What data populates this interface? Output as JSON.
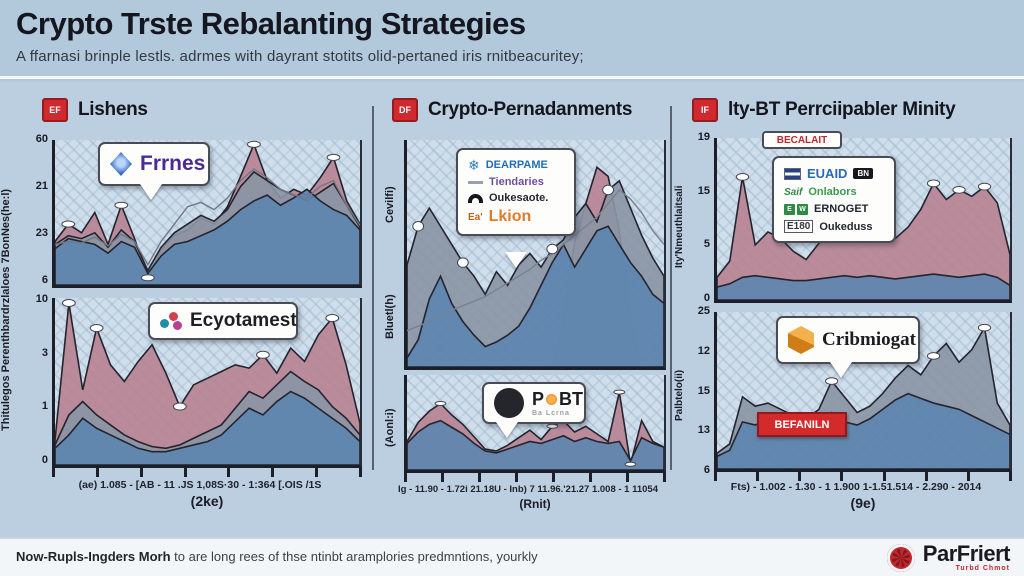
{
  "header": {
    "title": "Crypto Trste Rebalanting Strategies",
    "subtitle": "A ffarnasi brinple lestls. adrmes with dayrant stotits olid-pertaned iris rnitbeacuritey;"
  },
  "columns": [
    {
      "icon": "EF",
      "title": "Lishens",
      "ylabel_line1": "Thitulegos",
      "ylabel_line2": "Perenthbardrzlaloes 7BonNes(he:l)"
    },
    {
      "icon": "DF",
      "title": "Crypto-Pernadanments"
    },
    {
      "icon": "IF",
      "title": "lty-BT Perrciipabler Minity"
    }
  ],
  "legends": {
    "c0": {
      "label": "Frrnes"
    },
    "c1": {
      "label": "Ecyotamest"
    },
    "c2": {
      "rows": [
        {
          "text": "DEARPAME",
          "color": "#1f6fb5"
        },
        {
          "text": "Tiendaries",
          "color": "#6b4fa0"
        },
        {
          "text": "Oukesaote.",
          "color": "#22262e"
        },
        {
          "prefix": "Ea'",
          "text": "Lkion",
          "color": "#e07b2a"
        }
      ]
    },
    "c3": {
      "p": "P",
      "bt": "BT",
      "sub": "Ba Lcrna"
    },
    "c4": {
      "tab": "BECALAIT",
      "rows": [
        {
          "text": "EUAID",
          "badge": "BN",
          "color": "#2a6bb5"
        },
        {
          "prefix": "Saif",
          "text": "Onlabors",
          "color": "#3a9a4a"
        },
        {
          "sq1": "E",
          "sq2": "W",
          "text": "ERNOGET",
          "color": "#22262e"
        },
        {
          "prefix": "E180",
          "text": "Oukeduss",
          "color": "#22262e"
        }
      ]
    },
    "c5": {
      "label": "Cribmiogat",
      "badge": "BEFANILN"
    }
  },
  "footer": {
    "note_bold": "Now-Rupls-Ingders Morh",
    "note_rest": " to are long rees of thse ntinbt aramplories predmntions, yourkly",
    "brand": "ParFriert",
    "brand_sub": "Turbd Chmot"
  },
  "chart_data": [
    {
      "type": "area",
      "title": "Lishens (top)",
      "yticks": [
        "60",
        "21",
        "23",
        "6"
      ],
      "markers": [
        1,
        5,
        7,
        15,
        21
      ],
      "marker_series": 0,
      "series": [
        {
          "name": "pink",
          "color": "#b98392",
          "values": [
            30,
            42,
            36,
            50,
            28,
            55,
            32,
            5,
            24,
            34,
            38,
            46,
            42,
            54,
            75,
            97,
            72,
            60,
            66,
            62,
            74,
            88,
            58,
            42
          ]
        },
        {
          "name": "gray",
          "color": "#8b95a5",
          "values": [
            28,
            34,
            32,
            36,
            26,
            38,
            30,
            10,
            26,
            36,
            42,
            48,
            44,
            52,
            68,
            78,
            72,
            66,
            62,
            58,
            64,
            70,
            55,
            40
          ]
        },
        {
          "name": "blue",
          "color": "#5e85b0",
          "values": [
            25,
            32,
            30,
            28,
            22,
            30,
            26,
            8,
            20,
            28,
            30,
            34,
            38,
            44,
            52,
            58,
            62,
            55,
            60,
            66,
            58,
            52,
            48,
            38
          ]
        },
        {
          "name": "trend",
          "color": "#6f7885",
          "line": true,
          "values": [
            28,
            30,
            29,
            33,
            27,
            35,
            30,
            14,
            30,
            42,
            54,
            57,
            52,
            60,
            72,
            80,
            74,
            66,
            62,
            60,
            68,
            72,
            55,
            41
          ]
        }
      ]
    },
    {
      "type": "area",
      "title": "Lishens (bottom)",
      "yticks": [
        "10",
        "3",
        "1",
        "0"
      ],
      "xticklabels": "(ae)  1.085 - [AB - 11 .JS 1,08S·30 - 1:364  [.OIS /1S",
      "xlabel": "(2ke)",
      "markers": [
        1,
        3,
        9,
        15,
        20
      ],
      "marker_series": 0,
      "series": [
        {
          "name": "pink",
          "color": "#b98392",
          "values": [
            15,
            97,
            45,
            82,
            60,
            50,
            62,
            72,
            55,
            35,
            48,
            52,
            56,
            60,
            58,
            66,
            55,
            70,
            62,
            78,
            88,
            60,
            25
          ]
        },
        {
          "name": "gray",
          "color": "#8b95a5",
          "values": [
            12,
            30,
            38,
            30,
            24,
            18,
            14,
            11,
            10,
            12,
            16,
            20,
            24,
            34,
            44,
            40,
            48,
            56,
            50,
            45,
            35,
            28,
            18
          ]
        },
        {
          "name": "blue",
          "color": "#5e85b0",
          "values": [
            10,
            18,
            28,
            22,
            18,
            14,
            10,
            8,
            8,
            10,
            12,
            14,
            18,
            26,
            34,
            30,
            38,
            44,
            40,
            34,
            28,
            22,
            14
          ]
        }
      ]
    },
    {
      "type": "area",
      "title": "Crypto-Pernadanments (top)",
      "ylabel1": "Cevilfi)",
      "ylabel2": "Bluetl(h)",
      "markers": [
        1,
        5,
        13,
        18
      ],
      "marker_series": 1,
      "series": [
        {
          "name": "pink",
          "color": "#b98392",
          "values": [
            0,
            0,
            0,
            0,
            0,
            0,
            0,
            0,
            0,
            0,
            0,
            0,
            0,
            0,
            20,
            55,
            72,
            88,
            84,
            60,
            20,
            0,
            0,
            0
          ]
        },
        {
          "name": "gray",
          "color": "#8b95a5",
          "values": [
            45,
            62,
            70,
            62,
            54,
            46,
            40,
            32,
            42,
            36,
            45,
            50,
            44,
            52,
            56,
            66,
            72,
            64,
            78,
            82,
            70,
            58,
            48,
            40
          ]
        },
        {
          "name": "blue",
          "color": "#5e85b0",
          "values": [
            4,
            12,
            30,
            40,
            28,
            20,
            14,
            9,
            11,
            14,
            18,
            26,
            36,
            46,
            54,
            44,
            52,
            60,
            62,
            54,
            46,
            40,
            32,
            28
          ]
        },
        {
          "name": "trend",
          "color": "#7a8290",
          "line": true,
          "values": [
            16,
            18,
            20,
            22,
            25,
            27,
            29,
            31,
            34,
            37,
            40,
            43,
            47,
            50,
            54,
            58,
            62,
            66,
            72,
            78,
            74,
            68,
            60,
            54
          ]
        }
      ]
    },
    {
      "type": "area",
      "title": "Crypto-Pernadanments (bottom)",
      "ylabel": "(Aonl:i)",
      "xticklabels": "Ig - 11.90 - 1.72i 21.18U - Inb) 7 11.96.'21.27 1.008 - 1 11054",
      "xlabel": "(Rnit)",
      "markers": [
        3,
        13,
        19,
        20
      ],
      "marker_series": 0,
      "series": [
        {
          "name": "pink",
          "color": "#b98392",
          "values": [
            30,
            50,
            62,
            70,
            58,
            48,
            35,
            22,
            20,
            26,
            34,
            42,
            32,
            46,
            52,
            40,
            46,
            38,
            30,
            82,
            6,
            52,
            30,
            24
          ]
        },
        {
          "name": "blue",
          "color": "#5e85b0",
          "values": [
            28,
            40,
            48,
            52,
            45,
            38,
            28,
            20,
            18,
            22,
            26,
            30,
            28,
            32,
            36,
            30,
            34,
            30,
            28,
            30,
            10,
            34,
            28,
            24
          ]
        }
      ]
    },
    {
      "type": "area",
      "title": "lty-BT (top)",
      "yticks": [
        "19",
        "15",
        "5",
        "0"
      ],
      "ylabel": "Ity'Nmeuthlaitsali",
      "markers": [
        2,
        17,
        19,
        21
      ],
      "marker_series": 0,
      "series": [
        {
          "name": "pink",
          "color": "#b98392",
          "values": [
            14,
            24,
            76,
            34,
            42,
            38,
            30,
            25,
            35,
            42,
            48,
            45,
            50,
            42,
            38,
            45,
            56,
            72,
            62,
            68,
            64,
            70,
            60,
            28
          ]
        },
        {
          "name": "blue",
          "color": "#5e85b0",
          "values": [
            8,
            10,
            14,
            15,
            14,
            13,
            12,
            12,
            13,
            14,
            15,
            14,
            15,
            14,
            13,
            14,
            15,
            16,
            15,
            14,
            15,
            16,
            14,
            9
          ]
        }
      ]
    },
    {
      "type": "area",
      "title": "lty-BT (bottom)",
      "yticks": [
        "25",
        "12",
        "15",
        "13",
        "6"
      ],
      "ylabel": "Palbtelo(ii)",
      "xticklabels": "Fts) - 1.002 - 1.30 - 1 1.900 1-1.51.514 - 2.290 - 2014",
      "xlabel": "(9e)",
      "markers": [
        9,
        17,
        21
      ],
      "marker_series": 0,
      "series": [
        {
          "name": "gray",
          "color": "#8b95a5",
          "values": [
            10,
            16,
            46,
            40,
            42,
            38,
            34,
            32,
            38,
            56,
            46,
            36,
            40,
            48,
            58,
            66,
            60,
            72,
            80,
            68,
            76,
            90,
            42,
            28
          ]
        },
        {
          "name": "blue",
          "color": "#5e85b0",
          "values": [
            8,
            12,
            30,
            28,
            32,
            30,
            28,
            26,
            30,
            36,
            30,
            28,
            32,
            38,
            44,
            48,
            45,
            42,
            40,
            38,
            34,
            30,
            26,
            22
          ]
        }
      ]
    }
  ]
}
